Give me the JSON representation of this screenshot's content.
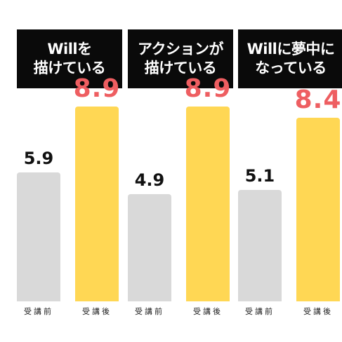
{
  "chart_data": [
    {
      "type": "bar",
      "title_lines": [
        "Willを",
        "描けている"
      ],
      "categories": [
        "受講前",
        "受講後"
      ],
      "values": [
        5.9,
        8.9
      ],
      "value_labels": [
        "5.9",
        "8.9"
      ],
      "ylim": [
        0,
        10
      ]
    },
    {
      "type": "bar",
      "title_lines": [
        "アクションが",
        "描けている"
      ],
      "categories": [
        "受講前",
        "受講後"
      ],
      "values": [
        4.9,
        8.9
      ],
      "value_labels": [
        "4.9",
        "8.9"
      ],
      "ylim": [
        0,
        10
      ]
    },
    {
      "type": "bar",
      "title_lines": [
        "Willに夢中に",
        "なっている"
      ],
      "categories": [
        "受講前",
        "受講後"
      ],
      "values": [
        5.1,
        8.4
      ],
      "value_labels": [
        "5.1",
        "8.4"
      ],
      "ylim": [
        0,
        10
      ]
    }
  ],
  "colors": {
    "before_bar": "#d9d9d9",
    "after_bar": "#ffd754",
    "after_value": "#ee5e61",
    "title_box": "#0a0a0a"
  }
}
